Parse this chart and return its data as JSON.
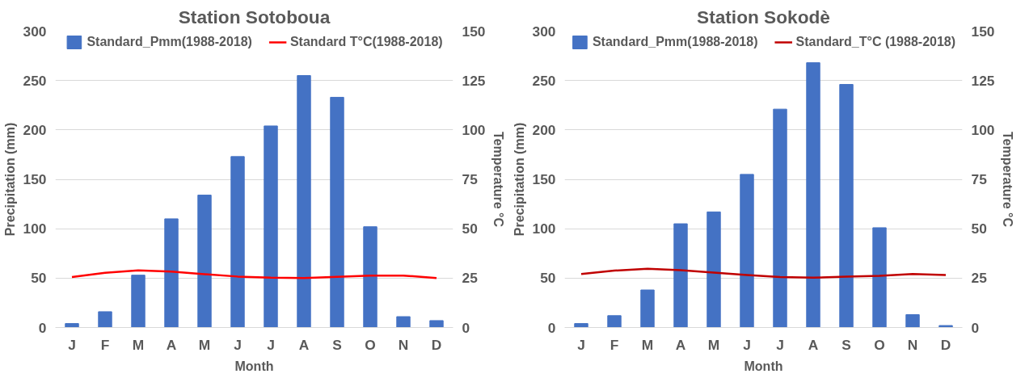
{
  "chart_data": [
    {
      "type": "bar",
      "title": "Station Sotoboua",
      "xlabel": "Month",
      "ylabel": "Precipitation (mm)",
      "y2label": "Temperature °C",
      "categories": [
        "J",
        "F",
        "M",
        "A",
        "M",
        "J",
        "J",
        "A",
        "S",
        "O",
        "N",
        "D"
      ],
      "series": [
        {
          "name": "Standard_Pmm(1988-2018)",
          "color": "#4472c4",
          "values": [
            4,
            16,
            53,
            110,
            134,
            173,
            204,
            255,
            233,
            102,
            11,
            7
          ]
        },
        {
          "name": "Standard T°C(1988-2018)",
          "type": "line",
          "axis": "y2",
          "color": "#ff0000",
          "values": [
            25.5,
            27.7,
            28.9,
            28.3,
            27,
            25.8,
            25.2,
            25,
            25.6,
            26.3,
            26.3,
            25
          ]
        }
      ],
      "ylim": [
        0,
        300
      ],
      "yticks": [
        0,
        50,
        100,
        150,
        200,
        250,
        300
      ],
      "y2lim": [
        0,
        150
      ],
      "y2ticks": [
        0,
        25,
        50,
        75,
        100,
        125,
        150
      ],
      "grid": "y",
      "legend": "top",
      "marker": "none",
      "line_style": "solid"
    },
    {
      "type": "bar",
      "title": "Station Sokodè",
      "xlabel": "Month",
      "ylabel": "Precipitation (mm)",
      "y2label": "Temperature °C",
      "categories": [
        "J",
        "F",
        "M",
        "A",
        "M",
        "J",
        "J",
        "A",
        "S",
        "O",
        "N",
        "D"
      ],
      "series": [
        {
          "name": "Standard_Pmm(1988-2018)",
          "color": "#4472c4",
          "values": [
            4,
            12,
            38,
            105,
            117,
            155,
            221,
            268,
            246,
            101,
            13,
            2
          ]
        },
        {
          "name": "Standard_T°C (1988-2018)",
          "type": "line",
          "axis": "y2",
          "color": "#c00000",
          "values": [
            27.1,
            28.8,
            29.7,
            29,
            27.8,
            26.6,
            25.5,
            25.2,
            25.7,
            26.2,
            27.1,
            26.6
          ]
        }
      ],
      "ylim": [
        0,
        300
      ],
      "yticks": [
        0,
        50,
        100,
        150,
        200,
        250,
        300
      ],
      "y2lim": [
        0,
        150
      ],
      "y2ticks": [
        0,
        25,
        50,
        75,
        100,
        125,
        150
      ],
      "grid": "y",
      "legend": "top",
      "marker": "none",
      "line_style": "solid"
    }
  ]
}
